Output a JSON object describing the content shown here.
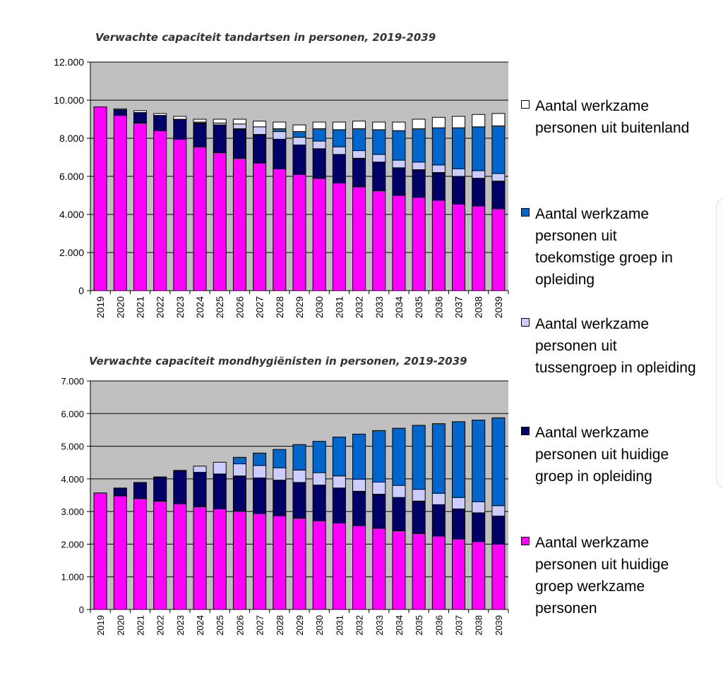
{
  "colors": {
    "plot_bg": "#c0c0c0",
    "pink": "#ff00ff",
    "navy": "#000066",
    "lavender": "#ccccff",
    "blue": "#0066cc",
    "white": "#ffffff"
  },
  "legend": [
    {
      "label": "Aantal werkzame personen uit buitenland",
      "color": "#ffffff"
    },
    {
      "label": "Aantal werkzame personen uit toekomstige groep in opleiding",
      "color": "#0066cc"
    },
    {
      "label": "Aantal werkzame personen uit tussengroep in opleiding",
      "color": "#ccccff"
    },
    {
      "label": "Aantal werkzame personen uit huidige groep in opleiding",
      "color": "#000066"
    },
    {
      "label": "Aantal werkzame personen uit huidige groep werkzame personen",
      "color": "#ff00ff"
    }
  ],
  "chart_data": [
    {
      "type": "bar",
      "stacked": true,
      "title": "Verwachte  capaciteit tandartsen in personen, 2019-2039",
      "categories": [
        "2019",
        "2020",
        "2021",
        "2022",
        "2023",
        "2024",
        "2025",
        "2026",
        "2027",
        "2028",
        "2029",
        "2030",
        "2031",
        "2032",
        "2033",
        "2034",
        "2035",
        "2036",
        "2037",
        "2038",
        "2039"
      ],
      "ylim": [
        0,
        12000
      ],
      "yticks": [
        0,
        2000,
        4000,
        6000,
        8000,
        10000,
        12000
      ],
      "ytick_labels": [
        "0",
        "2.000",
        "4.000",
        "6.000",
        "8.000",
        "10.000",
        "12.000"
      ],
      "grid": true,
      "series": [
        {
          "name": "Aantal werkzame personen uit huidige groep werkzame personen",
          "color": "#ff00ff",
          "values": [
            9650,
            9200,
            8800,
            8400,
            7950,
            7550,
            7250,
            6950,
            6700,
            6400,
            6100,
            5900,
            5650,
            5450,
            5250,
            5000,
            4900,
            4750,
            4550,
            4450,
            4300
          ]
        },
        {
          "name": "Aantal werkzame personen uit huidige groep in opleiding",
          "color": "#000066",
          "values": [
            0,
            300,
            550,
            800,
            1050,
            1250,
            1450,
            1550,
            1500,
            1550,
            1550,
            1550,
            1500,
            1500,
            1500,
            1450,
            1450,
            1450,
            1450,
            1450,
            1450
          ]
        },
        {
          "name": "Aantal werkzame personen uit tussengroep in opleiding",
          "color": "#ccccff",
          "values": [
            0,
            0,
            0,
            0,
            0,
            50,
            100,
            250,
            400,
            400,
            400,
            400,
            400,
            400,
            400,
            400,
            400,
            400,
            400,
            400,
            400
          ]
        },
        {
          "name": "Aantal werkzame personen uit toekomstige groep in opleiding",
          "color": "#0066cc",
          "values": [
            0,
            0,
            0,
            0,
            0,
            0,
            0,
            0,
            0,
            150,
            300,
            650,
            900,
            1150,
            1300,
            1550,
            1750,
            1950,
            2150,
            2300,
            2500
          ]
        },
        {
          "name": "Aantal werkzame personen uit buitenland",
          "color": "#ffffff",
          "values": [
            0,
            50,
            100,
            100,
            150,
            150,
            200,
            250,
            300,
            350,
            350,
            350,
            400,
            400,
            400,
            450,
            500,
            550,
            600,
            650,
            650
          ]
        }
      ]
    },
    {
      "type": "bar",
      "stacked": true,
      "title": "Verwachte  capaciteit mondhygiënisten in personen, 2019-2039",
      "categories": [
        "2019",
        "2020",
        "2021",
        "2022",
        "2023",
        "2024",
        "2025",
        "2026",
        "2027",
        "2028",
        "2029",
        "2030",
        "2031",
        "2032",
        "2033",
        "2034",
        "2035",
        "2036",
        "2037",
        "2038",
        "2039"
      ],
      "ylim": [
        0,
        7000
      ],
      "yticks": [
        0,
        1000,
        2000,
        3000,
        4000,
        5000,
        6000,
        7000
      ],
      "ytick_labels": [
        "0",
        "1.000",
        "2.000",
        "3.000",
        "4.000",
        "5.000",
        "6.000",
        "7.000"
      ],
      "grid": true,
      "series": [
        {
          "name": "Aantal werkzame personen uit huidige groep werkzame personen",
          "color": "#ff00ff",
          "values": [
            3570,
            3480,
            3400,
            3320,
            3240,
            3150,
            3080,
            3010,
            2940,
            2870,
            2800,
            2720,
            2650,
            2570,
            2490,
            2410,
            2330,
            2250,
            2160,
            2080,
            2000
          ]
        },
        {
          "name": "Aantal werkzame personen uit huidige groep in opleiding",
          "color": "#000066",
          "values": [
            0,
            240,
            490,
            740,
            1020,
            1050,
            1070,
            1080,
            1090,
            1090,
            1090,
            1090,
            1070,
            1050,
            1040,
            1020,
            990,
            960,
            920,
            880,
            860
          ]
        },
        {
          "name": "Aantal werkzame personen uit tussengroep in opleiding",
          "color": "#ccccff",
          "values": [
            0,
            0,
            0,
            0,
            0,
            190,
            360,
            370,
            380,
            380,
            380,
            380,
            370,
            370,
            370,
            370,
            360,
            350,
            350,
            340,
            320
          ]
        },
        {
          "name": "Aantal werkzame personen uit toekomstige groep in opleiding",
          "color": "#0066cc",
          "values": [
            0,
            0,
            0,
            0,
            0,
            0,
            0,
            200,
            380,
            560,
            780,
            960,
            1190,
            1380,
            1580,
            1750,
            1960,
            2130,
            2320,
            2500,
            2690
          ]
        },
        {
          "name": "Aantal werkzame personen uit buitenland",
          "color": "#ffffff",
          "values": [
            0,
            0,
            0,
            0,
            0,
            0,
            0,
            0,
            0,
            0,
            0,
            0,
            0,
            0,
            0,
            0,
            0,
            0,
            0,
            0,
            0
          ]
        }
      ]
    }
  ]
}
